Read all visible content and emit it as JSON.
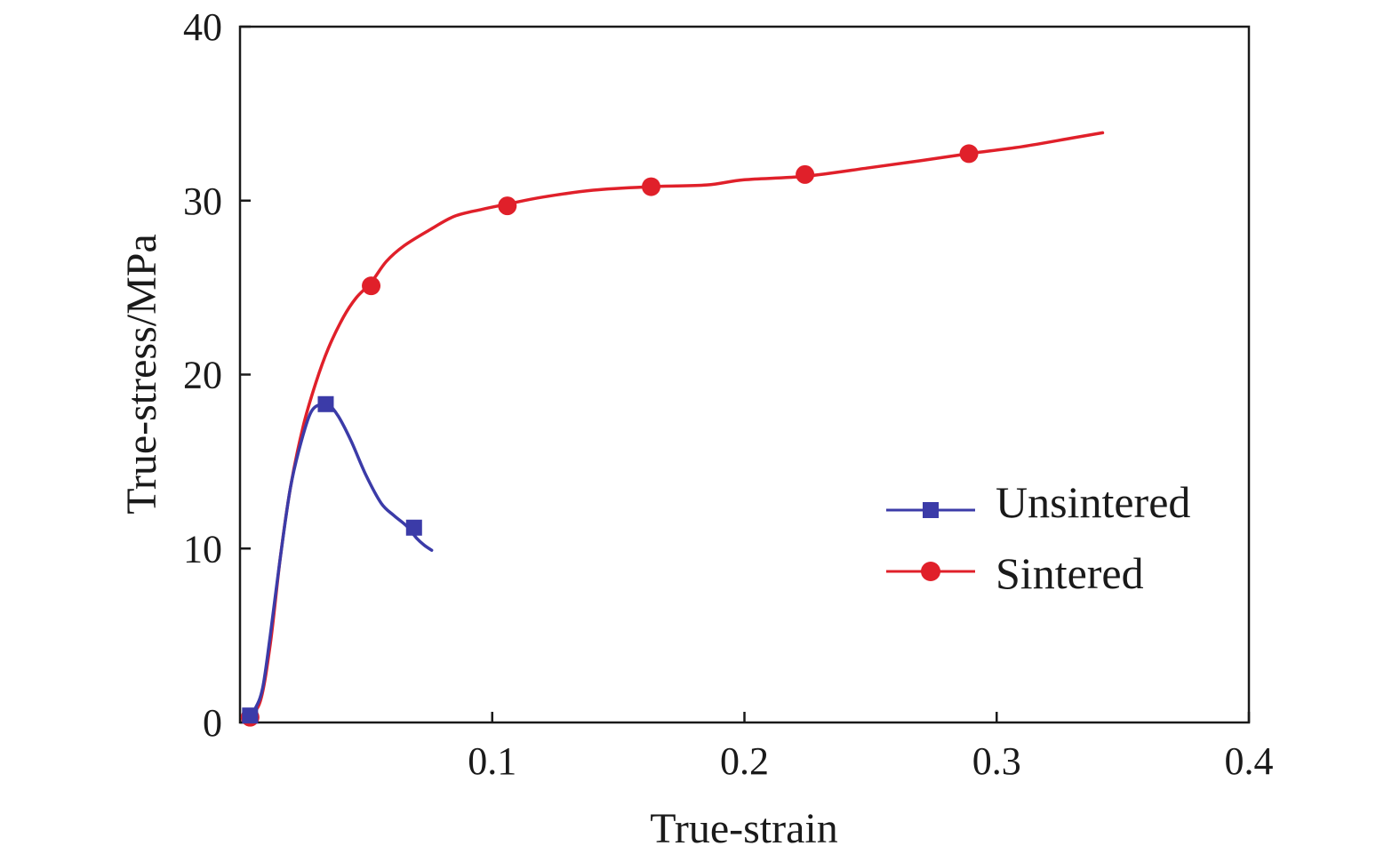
{
  "chart_data": {
    "type": "line",
    "xlabel": "True-strain",
    "ylabel": "True-stress/MPa",
    "xlim": [
      0,
      0.4
    ],
    "ylim": [
      0,
      40
    ],
    "x_ticks": [
      0.1,
      0.2,
      0.3,
      0.4
    ],
    "x_tick_labels": [
      "0.1",
      "0.2",
      "0.3",
      "0.4"
    ],
    "y_ticks": [
      0,
      10,
      20,
      30,
      40
    ],
    "y_tick_labels": [
      "0",
      "10",
      "20",
      "30",
      "40"
    ],
    "grid": false,
    "legend_position": "right",
    "series": [
      {
        "name": "Unsintered",
        "color": "#3b3ba8",
        "marker": "square",
        "x": [
          0.003,
          0.006,
          0.009,
          0.012,
          0.016,
          0.02,
          0.024,
          0.028,
          0.032,
          0.035,
          0.039,
          0.044,
          0.05,
          0.056,
          0.061,
          0.066,
          0.07,
          0.073,
          0.076
        ],
        "y": [
          0.4,
          0.8,
          2.0,
          5.0,
          9.5,
          13.5,
          16.0,
          17.8,
          18.3,
          18.3,
          17.6,
          16.2,
          14.2,
          12.6,
          11.9,
          11.3,
          10.6,
          10.2,
          9.9
        ],
        "markers": [
          {
            "x": 0.004,
            "y": 0.4
          },
          {
            "x": 0.034,
            "y": 18.3
          },
          {
            "x": 0.069,
            "y": 11.2
          }
        ]
      },
      {
        "name": "Sintered",
        "color": "#e0202a",
        "marker": "circle",
        "x": [
          0.003,
          0.008,
          0.012,
          0.016,
          0.02,
          0.025,
          0.03,
          0.035,
          0.041,
          0.046,
          0.052,
          0.058,
          0.065,
          0.075,
          0.085,
          0.096,
          0.106,
          0.12,
          0.14,
          0.163,
          0.185,
          0.2,
          0.224,
          0.25,
          0.27,
          0.289,
          0.31,
          0.33,
          0.342
        ],
        "y": [
          0.3,
          1.2,
          4.5,
          9.5,
          13.5,
          17.0,
          19.5,
          21.5,
          23.3,
          24.4,
          25.3,
          26.5,
          27.4,
          28.3,
          29.1,
          29.5,
          29.8,
          30.2,
          30.6,
          30.8,
          30.9,
          31.2,
          31.4,
          31.9,
          32.3,
          32.7,
          33.1,
          33.6,
          33.9
        ],
        "markers": [
          {
            "x": 0.004,
            "y": 0.3
          },
          {
            "x": 0.052,
            "y": 25.1
          },
          {
            "x": 0.106,
            "y": 29.7
          },
          {
            "x": 0.163,
            "y": 30.8
          },
          {
            "x": 0.224,
            "y": 31.5
          },
          {
            "x": 0.289,
            "y": 32.7
          }
        ]
      }
    ]
  }
}
